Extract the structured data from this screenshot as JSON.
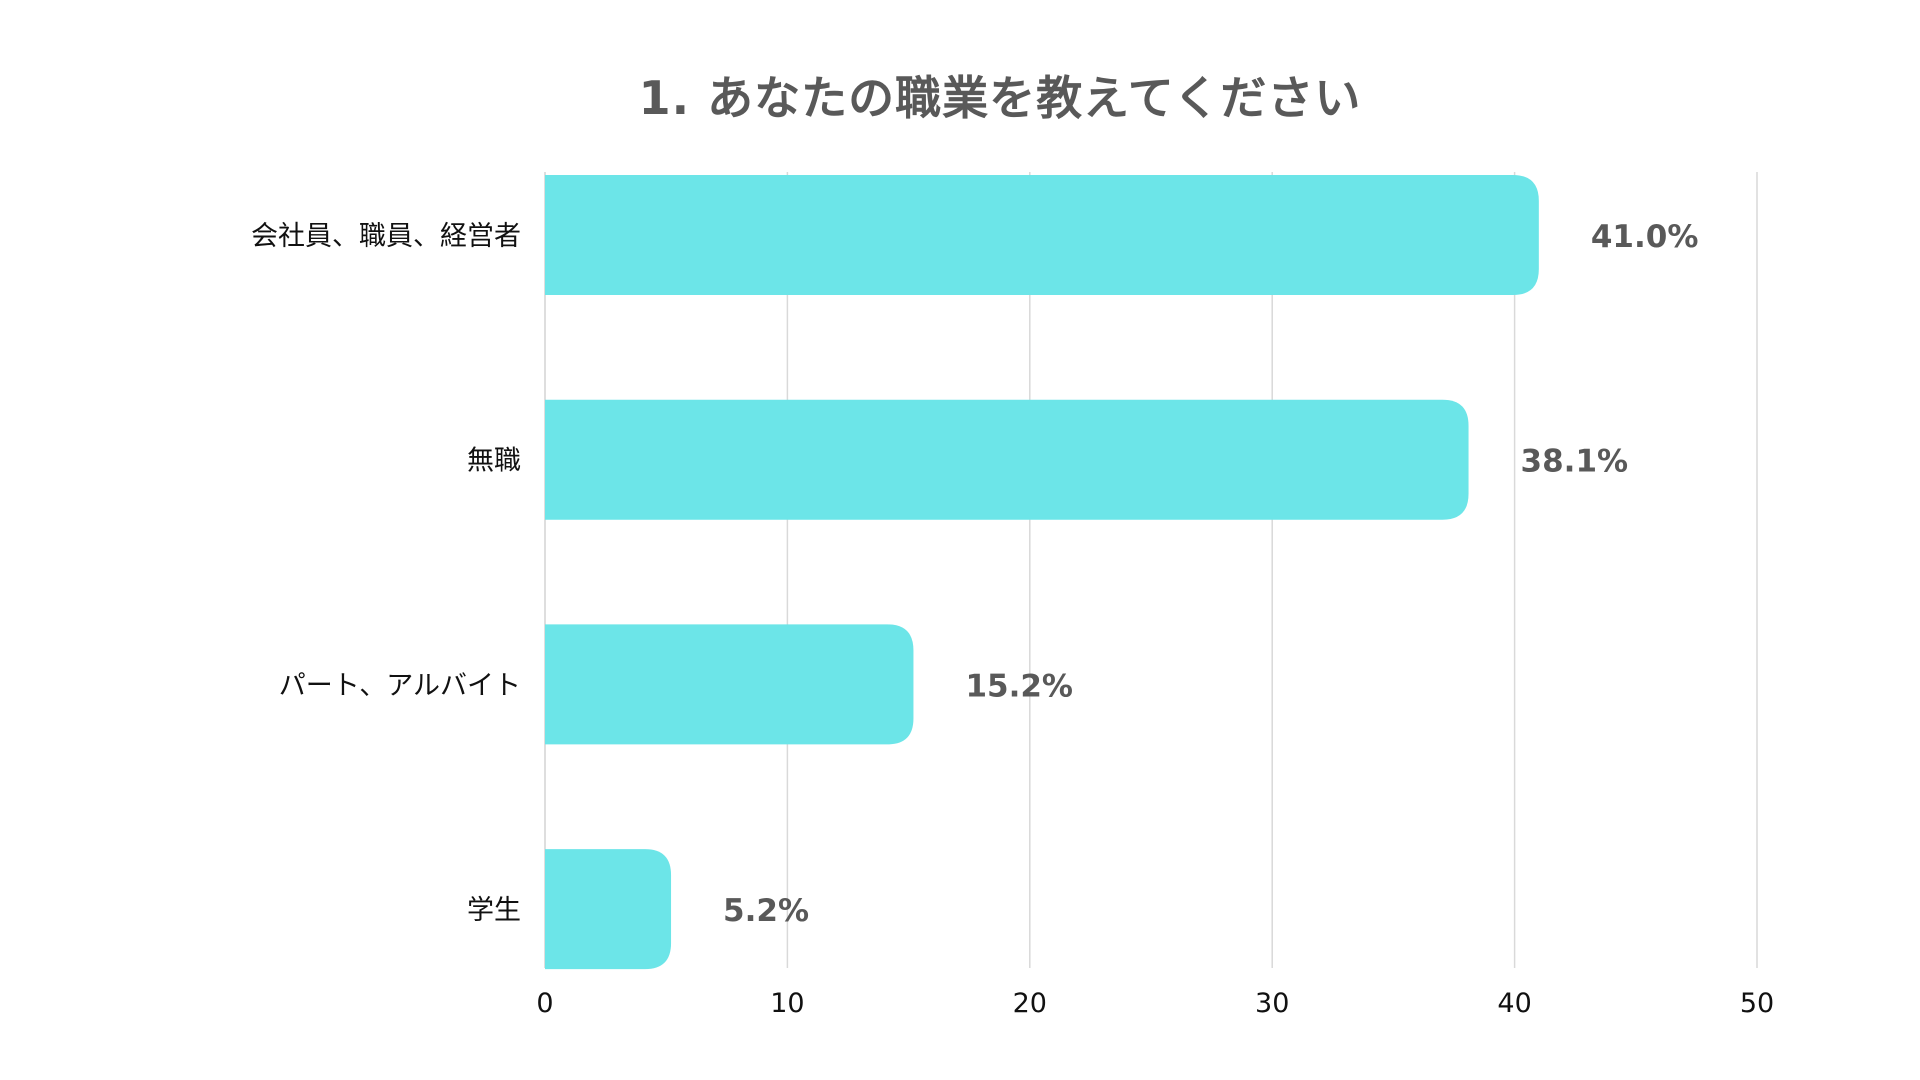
{
  "chart_data": {
    "type": "bar",
    "orientation": "horizontal",
    "title": "1.  あなたの職業を教えてください",
    "categories": [
      "会社員、職員、経営者",
      "無職",
      "パート、アルバイト",
      "学生"
    ],
    "values": [
      41.0,
      38.1,
      15.2,
      5.2
    ],
    "data_labels": [
      "41.0%",
      "38.1%",
      "15.2%",
      "5.2%"
    ],
    "xlim": [
      0,
      50
    ],
    "x_ticks": [
      0,
      10,
      20,
      30,
      40,
      50
    ],
    "x_tick_labels": [
      "0",
      "10",
      "20",
      "30",
      "40",
      "50"
    ],
    "xlabel": "",
    "ylabel": "",
    "grid": true,
    "legend": "none",
    "colors": {
      "bar": "#6ce5e8",
      "grid": "#d9d9d9",
      "title": "#595959",
      "data_label": "#595959",
      "axis_text": "#111111"
    }
  }
}
